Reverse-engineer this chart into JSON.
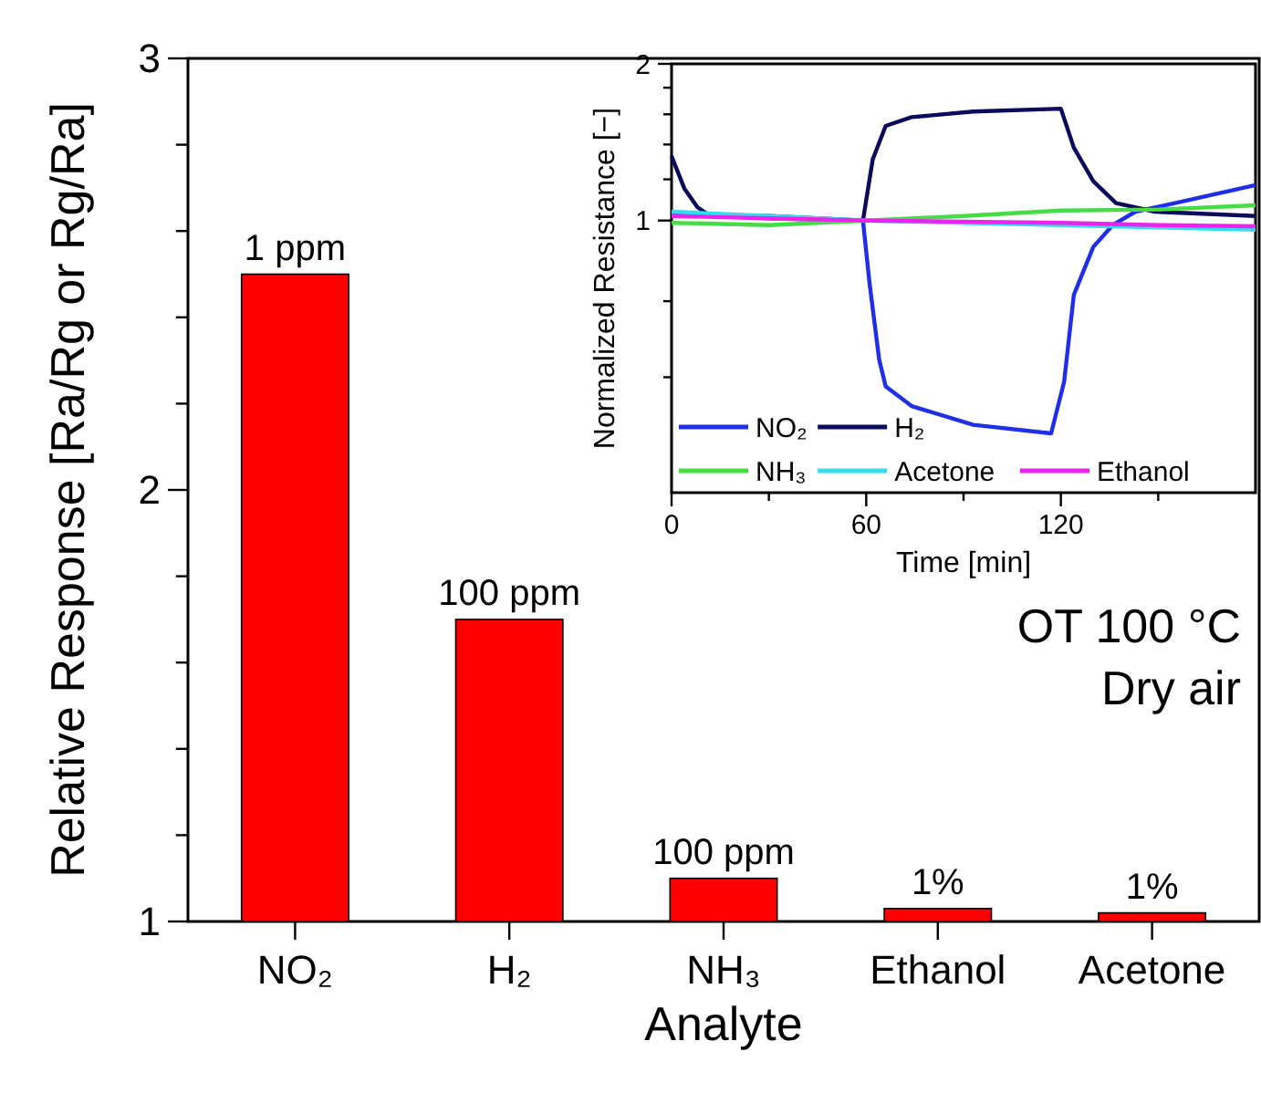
{
  "chart_data": [
    {
      "type": "bar",
      "xlabel": "Analyte",
      "ylabel": "Relative Response [Ra/Rg or Rg/Ra]",
      "categories": [
        "NO₂",
        "H₂",
        "NH₃",
        "Ethanol",
        "Acetone"
      ],
      "values": [
        2.5,
        1.7,
        1.1,
        1.03,
        1.02
      ],
      "color": "#ff0000",
      "ylim": [
        1,
        3
      ],
      "yticks": [
        1,
        {
          "value": 1.2,
          "label": null
        },
        {
          "value": 1.4,
          "label": null
        },
        {
          "value": 1.6,
          "label": null
        },
        {
          "value": 1.8,
          "label": null
        },
        2,
        {
          "value": 2.2,
          "label": null
        },
        {
          "value": 2.4,
          "label": null
        },
        {
          "value": 2.6,
          "label": null
        },
        {
          "value": 2.8,
          "label": null
        },
        3
      ],
      "grid": false,
      "annotations": [
        {
          "text": "1 ppm",
          "x": "NO₂",
          "y": 2.5
        },
        {
          "text": "100 ppm",
          "x": "H₂",
          "y": 1.7
        },
        {
          "text": "100 ppm",
          "x": "NH₃",
          "y": 1.1
        },
        {
          "text": "1%",
          "x": "Ethanol",
          "y": 1.03
        },
        {
          "text": "1%",
          "x": "Acetone",
          "y": 1.02
        },
        "OT 100 °C",
        "Dry air"
      ]
    },
    {
      "type": "line",
      "xlabel": "Time [min]",
      "ylabel": "Normalized Resistance [−]",
      "log": true,
      "xlim": [
        0,
        180
      ],
      "xticks": [
        0,
        {
          "value": 30,
          "label": null
        },
        60,
        {
          "value": 90,
          "label": null
        },
        120,
        {
          "value": 150,
          "label": null
        }
      ],
      "ylim": [
        0.3,
        2
      ],
      "yticks": [
        {
          "value": 0.5,
          "label": null
        },
        {
          "value": 0.7,
          "label": null
        },
        1,
        {
          "value": 1.2,
          "label": null
        },
        {
          "value": 1.4,
          "label": null
        },
        {
          "value": 1.6,
          "label": null
        },
        {
          "value": 1.8,
          "label": null
        },
        2
      ],
      "grid": false,
      "legend": "bottom",
      "marker": "none",
      "line_style": "solid",
      "series": [
        {
          "name": "NO₂",
          "color": "#1f2fe8",
          "x": [
            0,
            30,
            59,
            61,
            64,
            66,
            74,
            93,
            117,
            121,
            124,
            130,
            136,
            143,
            158,
            180
          ],
          "values": [
            1.03,
            1.01,
            1.0,
            0.76,
            0.54,
            0.48,
            0.44,
            0.405,
            0.39,
            0.49,
            0.72,
            0.89,
            0.98,
            1.04,
            1.09,
            1.17
          ]
        },
        {
          "name": "H₂",
          "color": "#0b0b5e",
          "x": [
            0,
            4,
            8,
            12,
            30,
            59,
            62,
            66,
            74,
            93,
            120,
            124,
            130,
            137,
            149,
            180
          ],
          "values": [
            1.33,
            1.15,
            1.06,
            1.02,
            1.02,
            1.0,
            1.31,
            1.52,
            1.58,
            1.62,
            1.64,
            1.38,
            1.19,
            1.08,
            1.04,
            1.02
          ]
        },
        {
          "name": "NH₃",
          "color": "#44dd44",
          "x": [
            0,
            30,
            60,
            90,
            120,
            150,
            180
          ],
          "values": [
            0.99,
            0.98,
            1.0,
            1.02,
            1.045,
            1.05,
            1.07
          ]
        },
        {
          "name": "Acetone",
          "color": "#33ddee",
          "x": [
            0,
            30,
            60,
            90,
            120,
            150,
            180
          ],
          "values": [
            1.04,
            1.02,
            1.0,
            0.99,
            0.98,
            0.97,
            0.96
          ]
        },
        {
          "name": "Ethanol",
          "color": "#ee22ee",
          "x": [
            0,
            30,
            60,
            90,
            120,
            150,
            180
          ],
          "values": [
            1.02,
            1.01,
            1.0,
            0.995,
            0.99,
            0.98,
            0.975
          ]
        }
      ]
    }
  ]
}
